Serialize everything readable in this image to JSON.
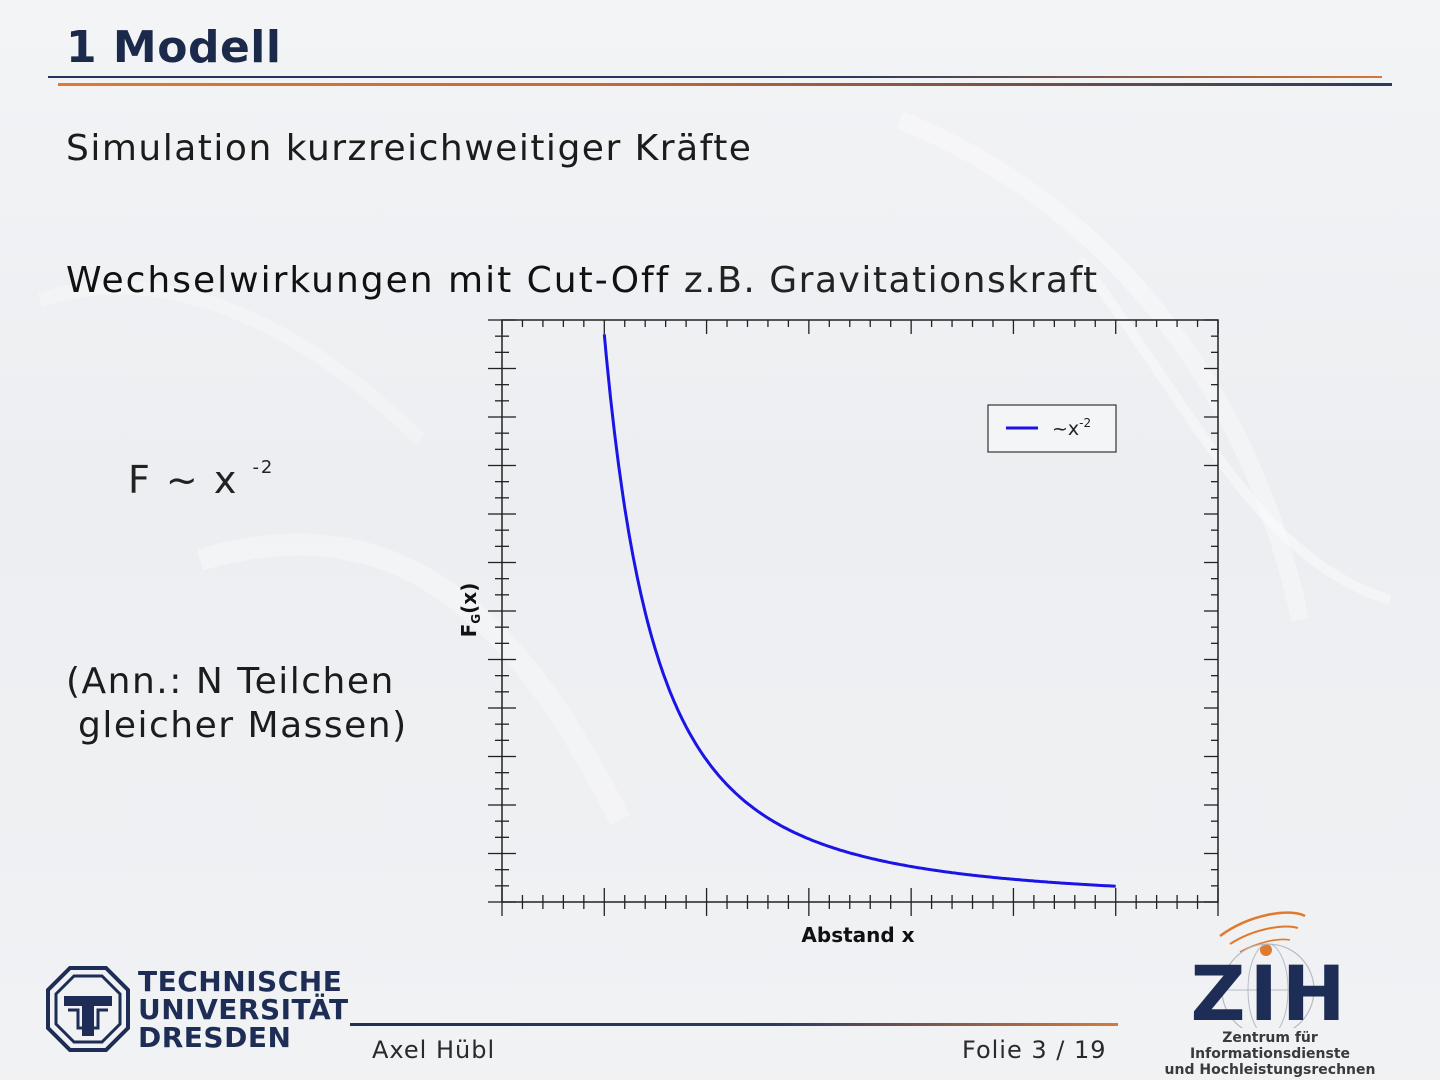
{
  "slide": {
    "title": "1 Modell",
    "subtitle": "Simulation kurzreichweitiger Kräfte",
    "line2_main": "Wechselwirkungen mit Cut-Off",
    "line2_rest": "z.B. Gravitationskraft",
    "formula_base": "F ~ x",
    "formula_exp": "-2",
    "note_line1": "(Ann.: N Teilchen",
    "note_line2": "gleicher Massen)"
  },
  "chart_data": {
    "type": "line",
    "title": "",
    "xlabel": "Abstand x",
    "ylabel": "F",
    "ylabel_sub": "G",
    "ylabel_tail": "(x)",
    "xlim": [
      0,
      7
    ],
    "ylim": [
      0,
      0.82
    ],
    "grid": false,
    "legend_position": "top-right",
    "series": [
      {
        "name": "~x",
        "name_sup": "-2",
        "color": "#1a14e6",
        "x": [
          1.0,
          1.1,
          1.2,
          1.3,
          1.4,
          1.5,
          1.6,
          1.8,
          2.0,
          2.2,
          2.5,
          2.8,
          3.0,
          3.5,
          4.0,
          4.5,
          5.0,
          5.5,
          6.0
        ],
        "formula": "0.8 * x^-2"
      }
    ]
  },
  "logos": {
    "tud_line1": "TECHNISCHE",
    "tud_line2": "UNIVERSITÄT",
    "tud_line3": "DRESDEN",
    "zih_mark": "ZIH",
    "zih_line1": "Zentrum für Informationsdienste",
    "zih_line2": "und Hochleistungsrechnen"
  },
  "footer": {
    "author": "Axel Hübl",
    "page": "Folie 3 / 19"
  },
  "colors": {
    "navy": "#1e2d55",
    "orange": "#e07a2e",
    "curve": "#1a14e6"
  }
}
